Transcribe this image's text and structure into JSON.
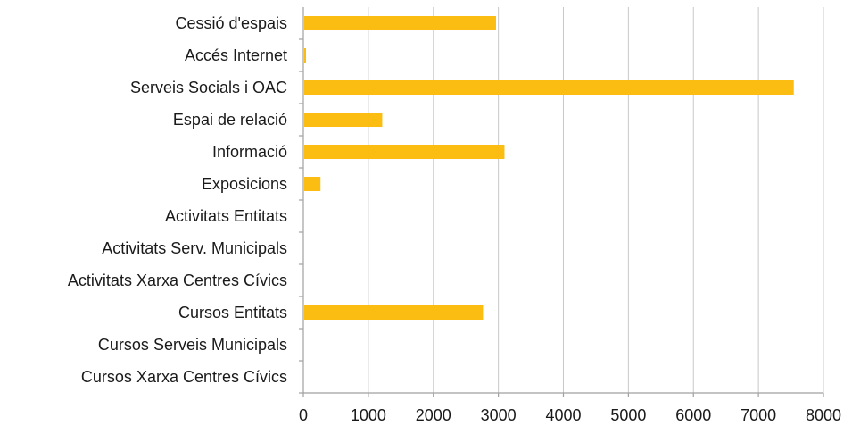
{
  "chart_data": {
    "type": "bar",
    "orientation": "horizontal",
    "categories": [
      "Cessió d'espais",
      "Accés Internet",
      "Serveis Socials i OAC",
      "Espai de relació",
      "Informació",
      "Exposicions",
      "Activitats Entitats",
      "Activitats Serv. Municipals",
      "Activitats Xarxa Centres Cívics",
      "Cursos Entitats",
      "Cursos Serveis Municipals",
      "Cursos Xarxa Centres Cívics"
    ],
    "values": [
      2950,
      20,
      7530,
      1200,
      3080,
      250,
      0,
      0,
      0,
      2750,
      0,
      0
    ],
    "xlim": [
      0,
      8000
    ],
    "xticks": [
      0,
      1000,
      2000,
      3000,
      4000,
      5000,
      6000,
      7000,
      8000
    ],
    "grid": true,
    "legend": "none",
    "title": "",
    "xlabel": "",
    "ylabel": "",
    "colors": {
      "bar": "#fbbd11",
      "grid": "#c8c8c8",
      "axis": "#a0a0a0",
      "text": "#1a1a1a"
    }
  }
}
